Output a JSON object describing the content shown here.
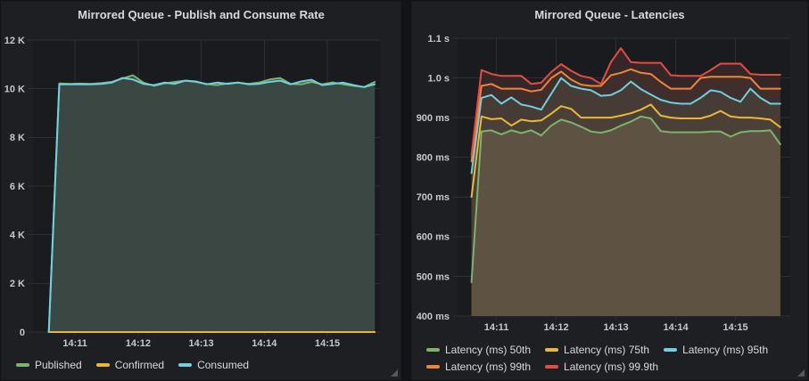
{
  "panels": [
    {
      "title": "Mirrored Queue - Publish and Consume Rate",
      "chart_data": {
        "type": "area",
        "title": "Mirrored Queue - Publish and Consume Rate",
        "unit": "messages per second",
        "x_step_seconds": 10,
        "x_offsets_seconds": [
          0,
          10,
          20,
          30,
          40,
          50,
          60,
          70,
          80,
          90,
          100,
          110,
          120,
          130,
          140,
          150,
          160,
          170,
          180,
          190,
          200,
          210,
          220,
          230,
          240,
          250,
          260,
          270,
          280,
          290,
          300,
          310
        ],
        "x_view_seconds": [
          -15,
          315
        ],
        "x_ticks": [
          {
            "t": 25,
            "label": "14:11"
          },
          {
            "t": 85,
            "label": "14:12"
          },
          {
            "t": 145,
            "label": "14:13"
          },
          {
            "t": 205,
            "label": "14:14"
          },
          {
            "t": 265,
            "label": "14:15"
          }
        ],
        "ylim": [
          0,
          12000
        ],
        "y_ticks": [
          {
            "v": 0,
            "label": "0"
          },
          {
            "v": 2000,
            "label": "2 K"
          },
          {
            "v": 4000,
            "label": "4 K"
          },
          {
            "v": 6000,
            "label": "6 K"
          },
          {
            "v": 8000,
            "label": "8 K"
          },
          {
            "v": 10000,
            "label": "10 K"
          },
          {
            "v": 12000,
            "label": "12 K"
          }
        ],
        "grid": true,
        "legend_position": "bottom-left",
        "fill_paint_order": [
          0,
          2
        ],
        "series": [
          {
            "name": "Published",
            "color": "#7EB26D",
            "fill": "#364440",
            "values": [
              0,
              10220,
              10200,
              10210,
              10200,
              10230,
              10280,
              10420,
              10550,
              10250,
              10120,
              10220,
              10280,
              10330,
              10280,
              10200,
              10150,
              10220,
              10250,
              10200,
              10250,
              10380,
              10440,
              10200,
              10180,
              10280,
              10180,
              10260,
              10180,
              10120,
              10070,
              10280
            ]
          },
          {
            "name": "Confirmed",
            "color": "#EAB839",
            "fill": null,
            "values": [
              0,
              0,
              0,
              0,
              0,
              0,
              0,
              0,
              0,
              0,
              0,
              0,
              0,
              0,
              0,
              0,
              0,
              0,
              0,
              0,
              0,
              0,
              0,
              0,
              0,
              0,
              0,
              0,
              0,
              0,
              0,
              0
            ]
          },
          {
            "name": "Consumed",
            "color": "#6ED0E0",
            "fill": "#3A4743",
            "values": [
              0,
              10180,
              10180,
              10180,
              10180,
              10200,
              10250,
              10440,
              10380,
              10200,
              10150,
              10250,
              10200,
              10330,
              10300,
              10180,
              10250,
              10200,
              10250,
              10180,
              10200,
              10280,
              10330,
              10180,
              10300,
              10370,
              10150,
              10200,
              10250,
              10150,
              10070,
              10180
            ]
          }
        ]
      }
    },
    {
      "title": "Mirrored Queue - Latencies",
      "chart_data": {
        "type": "area",
        "title": "Mirrored Queue - Latencies",
        "unit": "milliseconds",
        "x_step_seconds": 10,
        "x_offsets_seconds": [
          0,
          10,
          20,
          30,
          40,
          50,
          60,
          70,
          80,
          90,
          100,
          110,
          120,
          130,
          140,
          150,
          160,
          170,
          180,
          190,
          200,
          210,
          220,
          230,
          240,
          250,
          260,
          270,
          280,
          290,
          300,
          310
        ],
        "x_view_seconds": [
          -14,
          320
        ],
        "x_ticks": [
          {
            "t": 25,
            "label": "14:11"
          },
          {
            "t": 85,
            "label": "14:12"
          },
          {
            "t": 145,
            "label": "14:13"
          },
          {
            "t": 205,
            "label": "14:14"
          },
          {
            "t": 265,
            "label": "14:15"
          }
        ],
        "ylim": [
          400,
          1100
        ],
        "y_ticks": [
          {
            "v": 400,
            "label": "400 ms"
          },
          {
            "v": 500,
            "label": "500 ms"
          },
          {
            "v": 600,
            "label": "600 ms"
          },
          {
            "v": 700,
            "label": "700 ms"
          },
          {
            "v": 800,
            "label": "800 ms"
          },
          {
            "v": 900,
            "label": "900 ms"
          },
          {
            "v": 1000,
            "label": "1.0 s"
          },
          {
            "v": 1100,
            "label": "1.1 s"
          }
        ],
        "grid": true,
        "legend_position": "bottom-left",
        "fill_paint_order": [
          4,
          3,
          2,
          1,
          0
        ],
        "series": [
          {
            "name": "Latency (ms) 50th",
            "color": "#7EB26D",
            "fill": "#5E5243",
            "values": [
              485,
              865,
              868,
              858,
              868,
              861,
              868,
              855,
              880,
              895,
              888,
              877,
              865,
              862,
              868,
              880,
              890,
              903,
              898,
              866,
              863,
              863,
              863,
              863,
              865,
              865,
              852,
              863,
              866,
              866,
              868,
              833
            ]
          },
          {
            "name": "Latency (ms) 75th",
            "color": "#EAB839",
            "fill": "#4A4038",
            "values": [
              700,
              903,
              896,
              898,
              880,
              895,
              891,
              893,
              910,
              929,
              922,
              900,
              900,
              900,
              900,
              905,
              911,
              920,
              933,
              905,
              900,
              898,
              898,
              898,
              905,
              917,
              903,
              900,
              900,
              898,
              895,
              876
            ]
          },
          {
            "name": "Latency (ms) 95th",
            "color": "#6ED0E0",
            "fill": "#473B36",
            "values": [
              760,
              950,
              957,
              935,
              951,
              933,
              928,
              920,
              960,
              1000,
              980,
              973,
              969,
              955,
              957,
              969,
              991,
              972,
              958,
              945,
              938,
              935,
              935,
              950,
              969,
              965,
              950,
              940,
              973,
              950,
              935,
              935
            ]
          },
          {
            "name": "Latency (ms) 99th",
            "color": "#EF843C",
            "fill": "#3F2E2B",
            "values": [
              790,
              980,
              985,
              973,
              973,
              973,
              966,
              970,
              1000,
              1016,
              996,
              983,
              980,
              980,
              1007,
              1013,
              1022,
              1013,
              1010,
              990,
              973,
              973,
              973,
              1000,
              1003,
              1003,
              1003,
              1003,
              1000,
              973,
              973,
              973
            ]
          },
          {
            "name": "Latency (ms) 99.9th",
            "color": "#E24D42",
            "fill": "#352728",
            "values": [
              805,
              1020,
              1010,
              1005,
              1005,
              1005,
              985,
              988,
              1015,
              1035,
              1018,
              1005,
              1000,
              985,
              1040,
              1075,
              1040,
              1038,
              1038,
              1038,
              1007,
              1005,
              1005,
              1005,
              1020,
              1036,
              1036,
              1036,
              1010,
              1008,
              1008,
              1008
            ]
          }
        ]
      }
    }
  ],
  "style": {
    "panel_background": "#1e1f23",
    "plot_background": "#1a1b1e",
    "gridline_color": "#2e2f33",
    "tick_label_color": "#c7c8ca",
    "legend_text_color": "#d8d9da",
    "title_color": "#d8d9da"
  }
}
